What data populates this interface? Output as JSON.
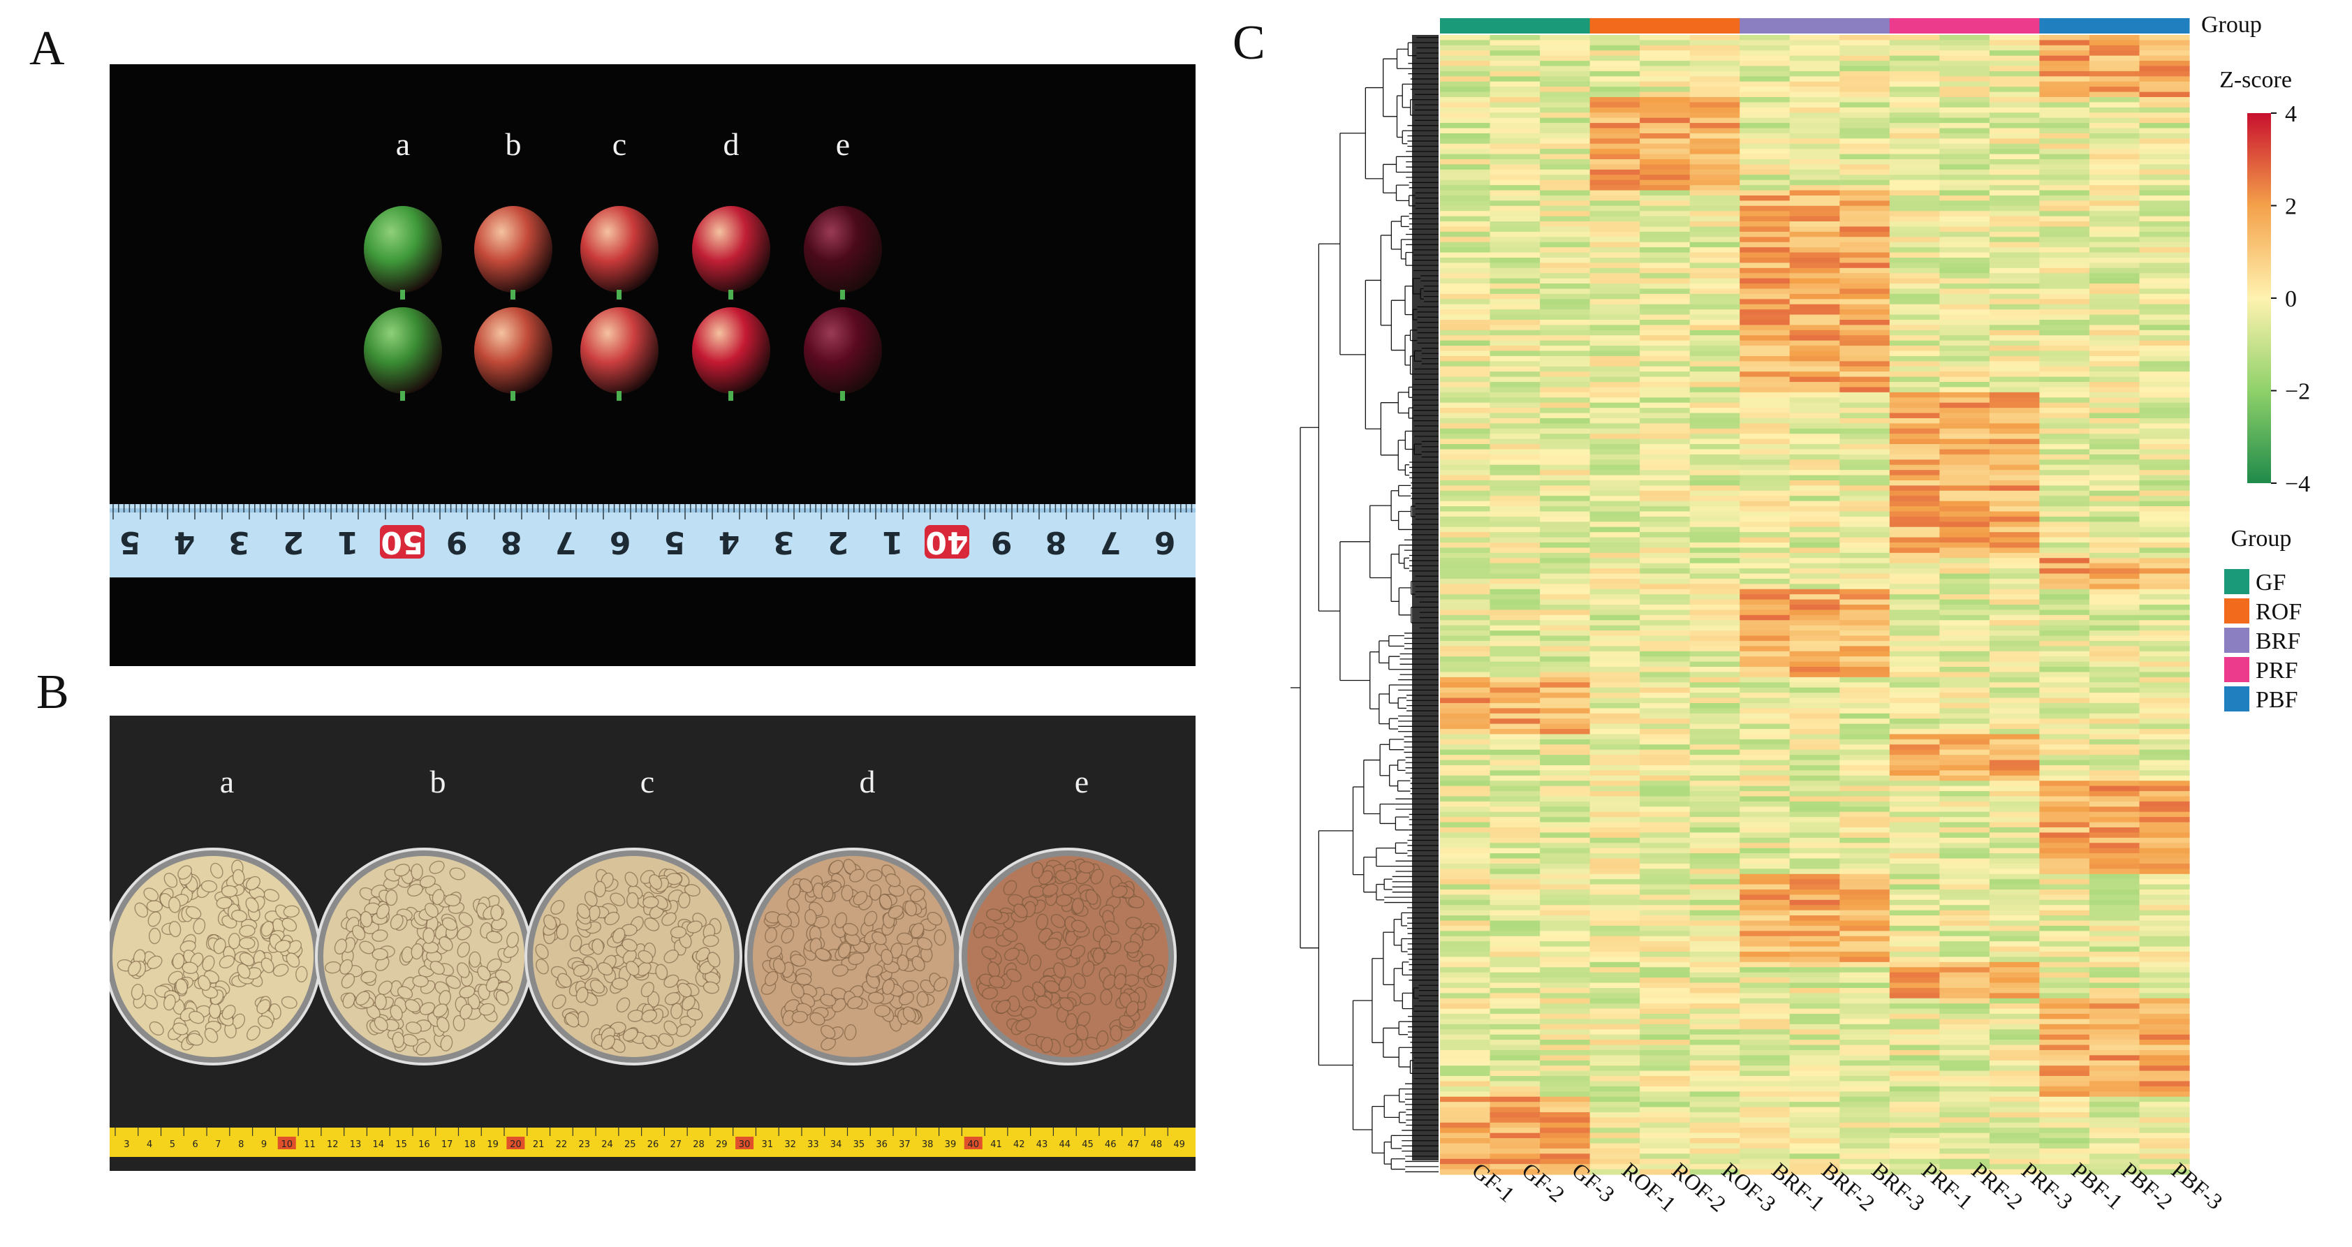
{
  "panels": {
    "A": {
      "label": "A",
      "fruit_labels": [
        "a",
        "b",
        "c",
        "d",
        "e"
      ],
      "fruit_colors": [
        [
          "#3f9a3a",
          "#3a8d34"
        ],
        [
          "#c44a3a",
          "#c04a38"
        ],
        [
          "#c93a3a",
          "#cc3f40"
        ],
        [
          "#c01f35",
          "#c41a33"
        ],
        [
          "#4a0a1a",
          "#5a0a20"
        ]
      ],
      "ruler_numbers": [
        "6",
        "7",
        "8",
        "9",
        "40",
        "1",
        "2",
        "3",
        "4",
        "5",
        "6",
        "7",
        "8",
        "9",
        "50",
        "1",
        "2",
        "3",
        "4",
        "5"
      ],
      "ruler_highlight": [
        "40",
        "50"
      ]
    },
    "B": {
      "label": "B",
      "dish_labels": [
        "a",
        "b",
        "c",
        "d",
        "e"
      ],
      "bean_colors": [
        "#e2d2a6",
        "#ddcca3",
        "#d8c29a",
        "#c9a37f",
        "#b3795a"
      ],
      "ruler_range": [
        3,
        49
      ],
      "ruler_highlight": [
        "10",
        "20",
        "30",
        "40"
      ]
    },
    "C": {
      "label": "C",
      "chart_data": {
        "type": "heatmap",
        "columns": [
          "GF-1",
          "GF-2",
          "GF-3",
          "ROF-1",
          "ROF-2",
          "ROF-3",
          "BRF-1",
          "BRF-2",
          "BRF-3",
          "PRF-1",
          "PRF-2",
          "PRF-3",
          "PBF-1",
          "PBF-2",
          "PBF-3"
        ],
        "column_groups": [
          "GF",
          "GF",
          "GF",
          "ROF",
          "ROF",
          "ROF",
          "BRF",
          "BRF",
          "BRF",
          "PRF",
          "PRF",
          "PRF",
          "PBF",
          "PBF",
          "PBF"
        ],
        "group_bar_label": "Group",
        "colorbar": {
          "title": "Z-score",
          "ticks": [
            4,
            2,
            0,
            -2,
            -4
          ],
          "tick_labels": [
            "4",
            "2",
            "0",
            "−2",
            "−4"
          ],
          "range": [
            -4,
            4
          ],
          "stops": [
            "#c8102e",
            "#f4a14a",
            "#fff2b0",
            "#8fd16a",
            "#1f8a4a"
          ]
        },
        "legend": {
          "title": "Group",
          "items": [
            {
              "name": "GF",
              "color": "#1a9a78"
            },
            {
              "name": "ROF",
              "color": "#f26b1d"
            },
            {
              "name": "BRF",
              "color": "#8b7fc2"
            },
            {
              "name": "PRF",
              "color": "#ec3a8c"
            },
            {
              "name": "PBF",
              "color": "#1f7fbf"
            }
          ]
        },
        "rows_description": "hierarchically clustered rows (z-score per metabolite)"
      }
    }
  }
}
